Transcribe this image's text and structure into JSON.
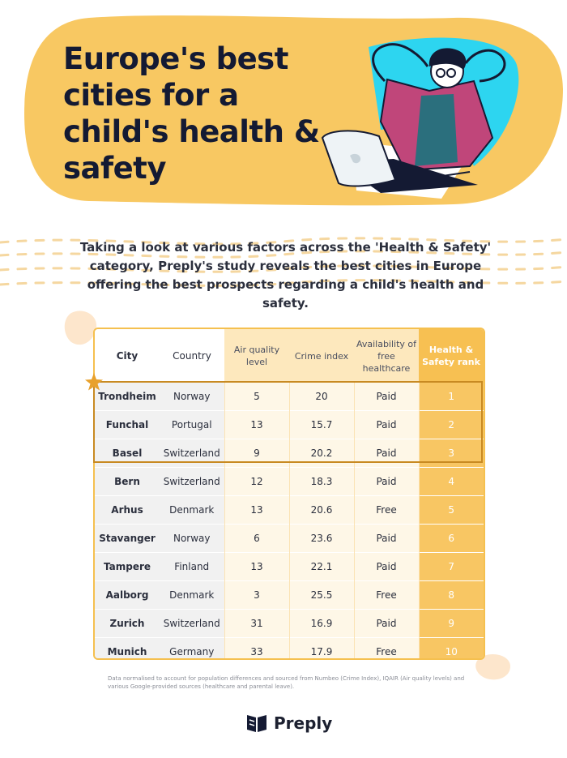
{
  "hero": {
    "title": "Europe's best cities for a child's health & safety"
  },
  "intro": "Taking a look at various factors across the 'Health & Safety' category, Preply's study reveals the best cities in Europe offering the best prospects regarding a child's health and safety.",
  "table": {
    "headers": {
      "city": "City",
      "country": "Country",
      "air": "Air quality level",
      "crime": "Crime index",
      "avail": "Availability of free healthcare",
      "rank": "Health & Safety rank"
    },
    "rows": [
      {
        "city": "Trondheim",
        "country": "Norway",
        "air": "5",
        "crime": "20",
        "avail": "Paid",
        "rank": "1"
      },
      {
        "city": "Funchal",
        "country": "Portugal",
        "air": "13",
        "crime": "15.7",
        "avail": "Paid",
        "rank": "2"
      },
      {
        "city": "Basel",
        "country": "Switzerland",
        "air": "9",
        "crime": "20.2",
        "avail": "Paid",
        "rank": "3"
      },
      {
        "city": "Bern",
        "country": "Switzerland",
        "air": "12",
        "crime": "18.3",
        "avail": "Paid",
        "rank": "4"
      },
      {
        "city": "Arhus",
        "country": "Denmark",
        "air": "13",
        "crime": "20.6",
        "avail": "Free",
        "rank": "5"
      },
      {
        "city": "Stavanger",
        "country": "Norway",
        "air": "6",
        "crime": "23.6",
        "avail": "Paid",
        "rank": "6"
      },
      {
        "city": "Tampere",
        "country": "Finland",
        "air": "13",
        "crime": "22.1",
        "avail": "Paid",
        "rank": "7"
      },
      {
        "city": "Aalborg",
        "country": "Denmark",
        "air": "3",
        "crime": "25.5",
        "avail": "Free",
        "rank": "8"
      },
      {
        "city": "Zurich",
        "country": "Switzerland",
        "air": "31",
        "crime": "16.9",
        "avail": "Paid",
        "rank": "9"
      },
      {
        "city": "Munich",
        "country": "Germany",
        "air": "33",
        "crime": "17.9",
        "avail": "Free",
        "rank": "10"
      }
    ]
  },
  "footnote": "Data normalised to account for population differences and sourced from Numbeo (Crime Index), IQAIR (Air quality levels) and various Google-provided sources (healthcare and parental leave).",
  "brand": {
    "name": "Preply",
    "icon": "preply-logo-icon"
  },
  "colors": {
    "accent_yellow": "#f7c052",
    "navy": "#141a33",
    "cyan": "#2dd5f0",
    "magenta": "#c0467a"
  }
}
